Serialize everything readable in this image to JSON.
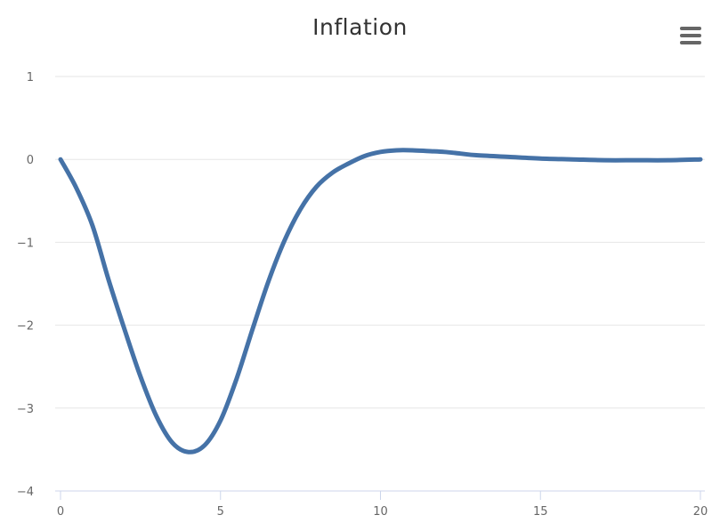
{
  "colors": {
    "series": "#4572a7",
    "grid": "#e6e6e6",
    "axis": "#ccd6eb",
    "text": "#666666",
    "title": "#333333"
  },
  "menu": {
    "icon": "hamburger-menu-icon"
  },
  "chart_data": {
    "type": "line",
    "title": "Inflation",
    "xlabel": "",
    "ylabel": "",
    "xlim": [
      0,
      20
    ],
    "ylim": [
      -4,
      1
    ],
    "x_ticks": [
      0,
      5,
      10,
      15,
      20
    ],
    "y_ticks": [
      1,
      0,
      -1,
      -2,
      -3,
      -4
    ],
    "grid": true,
    "legend": "none",
    "series": [
      {
        "x": [
          0,
          0.5,
          1,
          1.5,
          2,
          2.5,
          3,
          3.5,
          4,
          4.5,
          5,
          5.5,
          6,
          6.5,
          7,
          7.5,
          8,
          8.5,
          9,
          9.5,
          10,
          10.5,
          11,
          11.5,
          12,
          12.5,
          13,
          14,
          15,
          16,
          17,
          18,
          19,
          20
        ],
        "values": [
          0,
          -0.35,
          -0.8,
          -1.45,
          -2.05,
          -2.62,
          -3.1,
          -3.42,
          -3.53,
          -3.45,
          -3.15,
          -2.65,
          -2.05,
          -1.47,
          -0.98,
          -0.6,
          -0.33,
          -0.16,
          -0.05,
          0.04,
          0.09,
          0.11,
          0.11,
          0.1,
          0.09,
          0.07,
          0.05,
          0.03,
          0.01,
          0.0,
          -0.01,
          -0.01,
          -0.01,
          0.0
        ]
      }
    ]
  }
}
